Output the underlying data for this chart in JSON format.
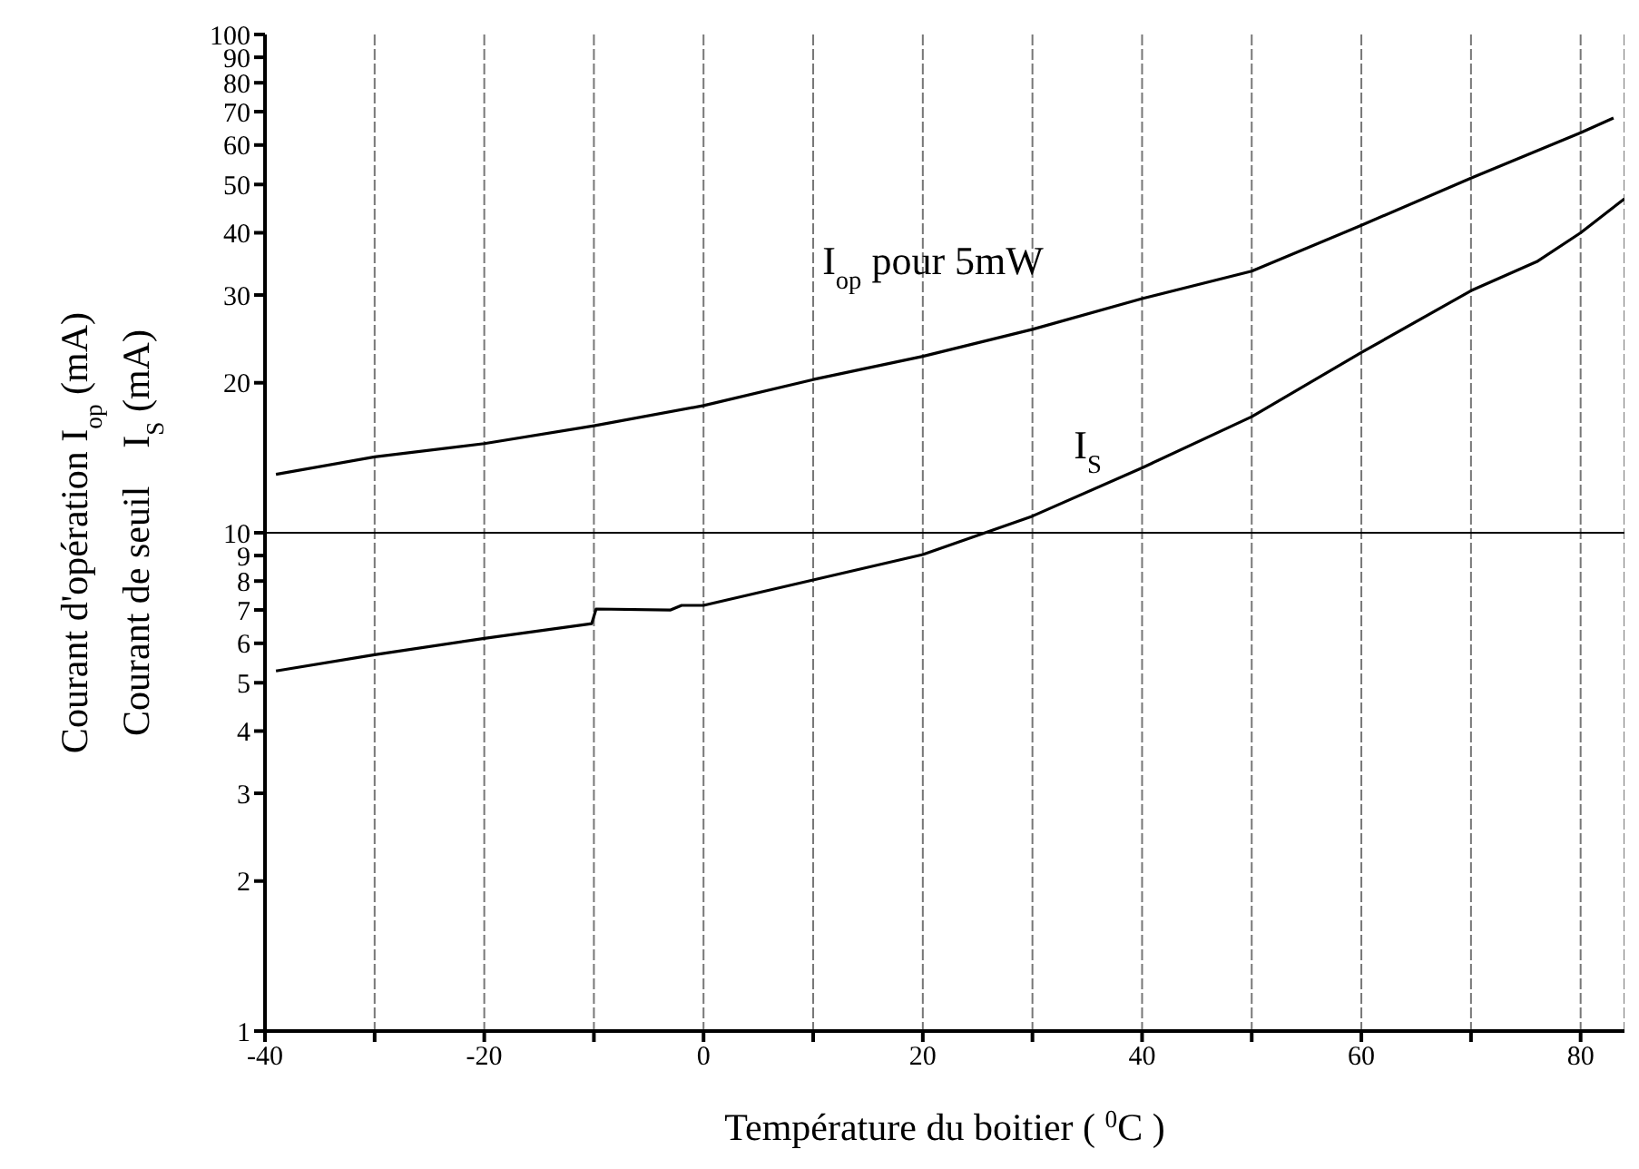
{
  "chart_data": {
    "type": "line",
    "xlabel": "Température du boitier ( $^{0}$C )",
    "ylabel": "Courant d'opération I$_{op}$ (mA)\nCourant de seuil    I$_{S}$ (mA)",
    "xlim": [
      -40,
      84
    ],
    "xticks": [
      -40,
      {
        "value": -30,
        "label": null
      },
      -20,
      {
        "value": -10,
        "label": null
      },
      0,
      {
        "value": 10,
        "label": null
      },
      20,
      {
        "value": 30,
        "label": null
      },
      40,
      {
        "value": 50,
        "label": null
      },
      60,
      {
        "value": 70,
        "label": null
      },
      80
    ],
    "ylim": [
      1,
      100
    ],
    "yticks": [
      1,
      2,
      3,
      4,
      5,
      6,
      7,
      8,
      9,
      10,
      20,
      30,
      40,
      50,
      60,
      70,
      80,
      90,
      100
    ],
    "log": "y",
    "grid": "x",
    "marker": "none",
    "line_style": "solid",
    "ref_lines": [
      {
        "axis": "y",
        "value": 10,
        "color": "#000000"
      }
    ],
    "series": [
      {
        "name": "I$_{op}$ pour 5mW",
        "color": "#000000",
        "x": [
          -39,
          -30,
          -20,
          -10,
          0,
          10,
          20,
          30,
          40,
          50,
          60,
          70,
          80,
          83
        ],
        "values": [
          13.1,
          14.2,
          15.1,
          16.4,
          18.0,
          20.3,
          22.6,
          25.6,
          29.5,
          33.5,
          41.4,
          51.5,
          63.5,
          68
        ]
      },
      {
        "name": "I$_{S}$",
        "color": "#000000",
        "x": [
          -39,
          -30,
          -20,
          -10.2,
          -9.8,
          -3,
          -2,
          0,
          10,
          20,
          30,
          40,
          50,
          60,
          70,
          76,
          80,
          84
        ],
        "values": [
          5.28,
          5.69,
          6.14,
          6.57,
          7.03,
          7.0,
          7.15,
          7.15,
          8.04,
          9.04,
          10.8,
          13.5,
          17.1,
          23.0,
          30.6,
          35,
          40,
          46.8
        ]
      }
    ]
  }
}
